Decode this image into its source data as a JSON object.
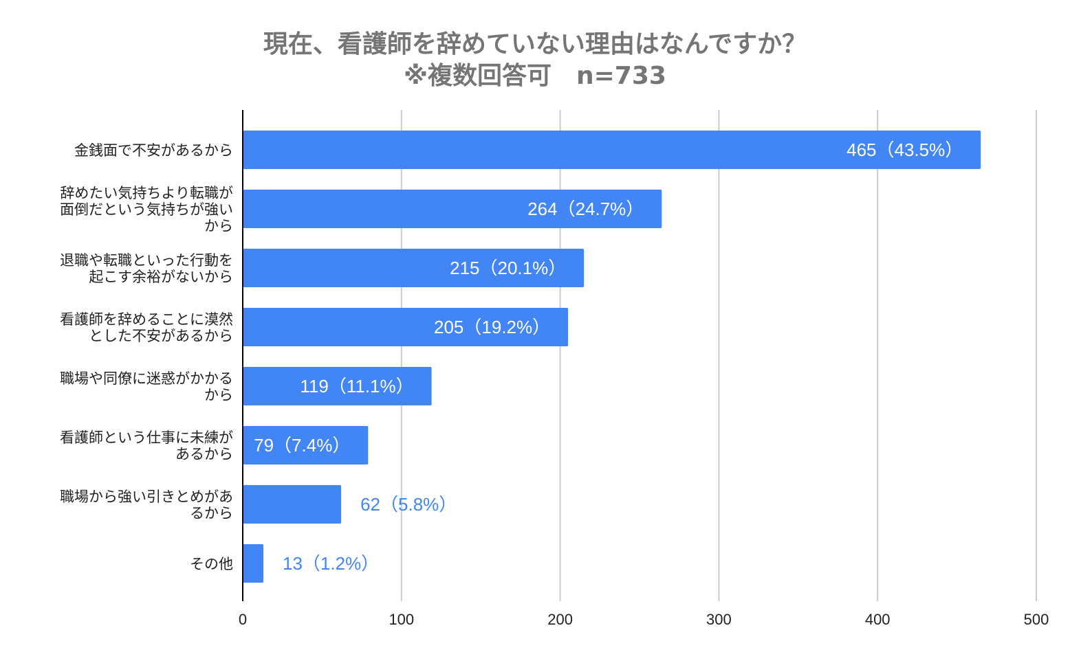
{
  "title_line1": "現在、看護師を辞めていない理由はなんですか？",
  "title_line2": "※複数回答可　n=733",
  "colors": {
    "bar": "#4285F4",
    "label_inside": "#ffffff",
    "label_outside": "#4285F4",
    "grid": "#cccccc",
    "axis": "#000000",
    "title": "#757575",
    "text": "#222222"
  },
  "chart_data": {
    "type": "bar",
    "orientation": "horizontal",
    "categories": [
      [
        "金銭面で不安があるから"
      ],
      [
        "辞めたい気持ちより転職が",
        "面倒だという気持ちが強い",
        "から"
      ],
      [
        "退職や転職といった行動を",
        "起こす余裕がないから"
      ],
      [
        "看護師を辞めることに漠然",
        "とした不安があるから"
      ],
      [
        "職場や同僚に迷惑がかかる",
        "から"
      ],
      [
        "看護師という仕事に未練が",
        "あるから"
      ],
      [
        "職場から強い引きとめがあ",
        "るから"
      ],
      [
        "その他"
      ]
    ],
    "values": [
      465,
      264,
      215,
      205,
      119,
      79,
      62,
      13
    ],
    "data_labels": [
      "465（43.5%）",
      "264（24.7%）",
      "215（20.1%）",
      "205（19.2%）",
      "119（11.1%）",
      "79（7.4%）",
      "62（5.8%）",
      "13（1.2%）"
    ],
    "xlim": [
      0,
      500
    ],
    "xticks": [
      0,
      100,
      200,
      300,
      400,
      500
    ],
    "grid": true,
    "legend": "none"
  }
}
